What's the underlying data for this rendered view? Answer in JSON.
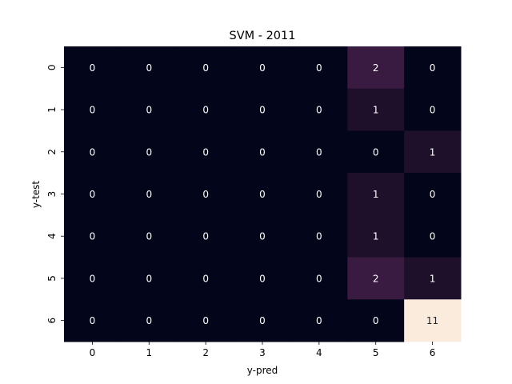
{
  "chart_data": {
    "type": "heatmap",
    "title": "SVM - 2011",
    "xlabel": "y-pred",
    "ylabel": "y-test",
    "x_categories": [
      "0",
      "1",
      "2",
      "3",
      "4",
      "5",
      "6"
    ],
    "y_categories": [
      "0",
      "1",
      "2",
      "3",
      "4",
      "5",
      "6"
    ],
    "values": [
      [
        0,
        0,
        0,
        0,
        0,
        2,
        0
      ],
      [
        0,
        0,
        0,
        0,
        0,
        1,
        0
      ],
      [
        0,
        0,
        0,
        0,
        0,
        0,
        1
      ],
      [
        0,
        0,
        0,
        0,
        0,
        1,
        0
      ],
      [
        0,
        0,
        0,
        0,
        0,
        1,
        0
      ],
      [
        0,
        0,
        0,
        0,
        0,
        2,
        1
      ],
      [
        0,
        0,
        0,
        0,
        0,
        0,
        11
      ]
    ],
    "value_range": [
      0,
      11
    ],
    "colorbar": false,
    "colormap": "rocket"
  }
}
